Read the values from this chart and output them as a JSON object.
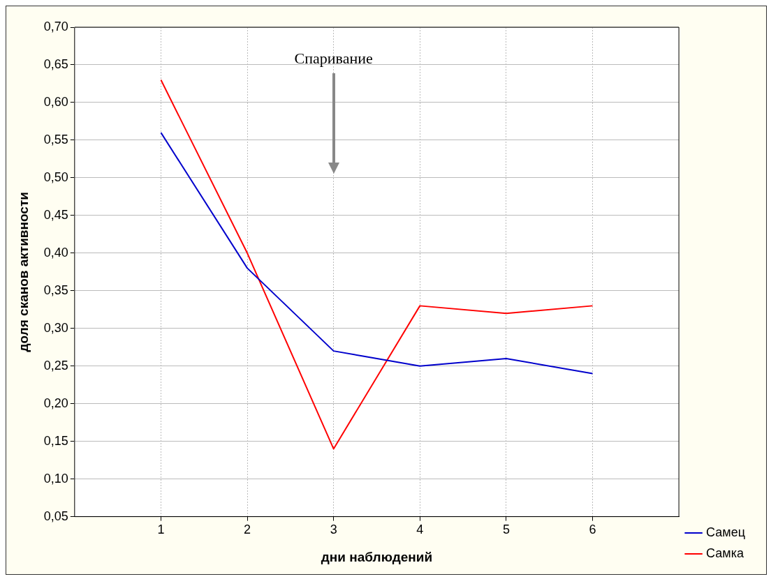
{
  "chart_data": {
    "type": "line",
    "xlabel": "дни наблюдений",
    "ylabel": "доля сканов активности",
    "x": [
      1,
      2,
      3,
      4,
      5,
      6
    ],
    "series": [
      {
        "name": "Самец",
        "color": "#0000cc",
        "values": [
          0.56,
          0.38,
          0.27,
          0.25,
          0.26,
          0.24
        ]
      },
      {
        "name": "Самка",
        "color": "#ff0000",
        "values": [
          0.63,
          0.4,
          0.14,
          0.33,
          0.32,
          0.33
        ]
      }
    ],
    "xlim": [
      0,
      7
    ],
    "xticks": [
      1,
      2,
      3,
      4,
      5,
      6
    ],
    "ylim": [
      0.05,
      0.7
    ],
    "yticks": [
      {
        "value": 0.05,
        "label": "0,05"
      },
      {
        "value": 0.1,
        "label": "0,10"
      },
      {
        "value": 0.15,
        "label": "0,15"
      },
      {
        "value": 0.2,
        "label": "0,20"
      },
      {
        "value": 0.25,
        "label": "0,25"
      },
      {
        "value": 0.3,
        "label": "0,30"
      },
      {
        "value": 0.35,
        "label": "0,35"
      },
      {
        "value": 0.4,
        "label": "0,40"
      },
      {
        "value": 0.45,
        "label": "0,45"
      },
      {
        "value": 0.5,
        "label": "0,50"
      },
      {
        "value": 0.55,
        "label": "0,55"
      },
      {
        "value": 0.6,
        "label": "0,60"
      },
      {
        "value": 0.65,
        "label": "0,65"
      },
      {
        "value": 0.7,
        "label": "0,70"
      }
    ],
    "annotations": [
      "Спаривание"
    ],
    "grid": true,
    "legend": "bottom right",
    "marker": "none",
    "line_style": "solid"
  }
}
